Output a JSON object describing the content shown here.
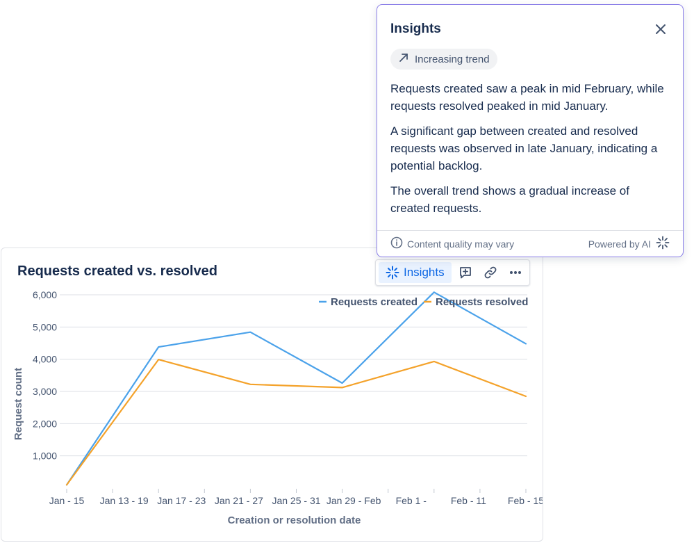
{
  "card": {
    "title": "Requests created vs. resolved",
    "toolbar": {
      "insights_label": "Insights"
    }
  },
  "chart_data": {
    "type": "line",
    "categories": [
      "Jan  - 15",
      "Jan 13 - 19",
      "Jan 17 - 23",
      "Jan 21 - 27",
      "Jan 25 - 31",
      "Jan 29 - Feb",
      "Feb 1 -",
      "Feb  - 11",
      "Feb  - 15"
    ],
    "xlabel": "Creation or resolution date",
    "ylabel": "Request count",
    "ylim": [
      0,
      6000
    ],
    "yticks": [
      1000,
      2000,
      3000,
      4000,
      5000,
      6000
    ],
    "ytick_labels": [
      "1,000",
      "2,000",
      "3,000",
      "4,000",
      "5,000",
      "6,000"
    ],
    "grid": true,
    "legend_position": "top-right",
    "series": [
      {
        "name": "Requests created",
        "color": "#4ba2ea",
        "points": [
          [
            0,
            100
          ],
          [
            2,
            4380
          ],
          [
            4,
            4840
          ],
          [
            6,
            3260
          ],
          [
            8,
            6080
          ],
          [
            10,
            4480
          ]
        ]
      },
      {
        "name": "Requests resolved",
        "color": "#f4a22a",
        "points": [
          [
            0,
            100
          ],
          [
            2,
            3990
          ],
          [
            4,
            3220
          ],
          [
            6,
            3120
          ],
          [
            8,
            3930
          ],
          [
            10,
            2850
          ]
        ]
      }
    ]
  },
  "insights": {
    "title": "Insights",
    "trend_chip": "Increasing trend",
    "paragraphs": [
      "Requests created saw a peak in mid February, while requests resolved peaked in mid January.",
      "A significant gap between created and resolved requests was observed in late January, indicating a potential backlog.",
      "The overall trend shows a gradual increase of created requests."
    ],
    "footer_left": "Content quality may vary",
    "footer_right": "Powered by AI"
  }
}
